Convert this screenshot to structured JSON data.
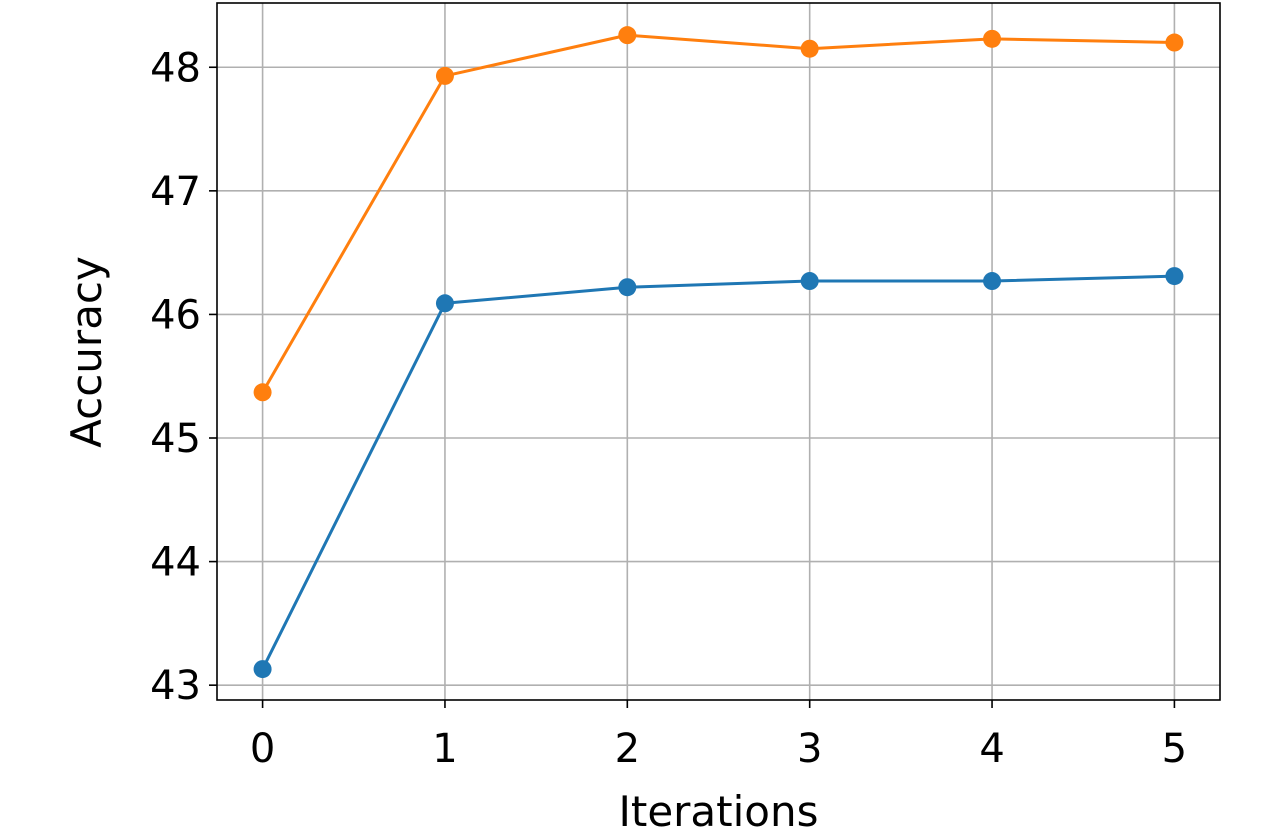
{
  "chart_data": {
    "type": "line",
    "title": "",
    "xlabel": "Iterations",
    "ylabel": "Accuracy",
    "x": [
      0,
      1,
      2,
      3,
      4,
      5
    ],
    "xticks": [
      "0",
      "1",
      "2",
      "3",
      "4",
      "5"
    ],
    "yticks": [
      "43",
      "44",
      "45",
      "46",
      "47",
      "48"
    ],
    "xlim": [
      -0.25,
      5.25
    ],
    "ylim": [
      42.88,
      48.52
    ],
    "grid": true,
    "legend": "none",
    "markers": "circle",
    "series": [
      {
        "color": "#1f77b4",
        "values": [
          43.13,
          46.09,
          46.22,
          46.27,
          46.27,
          46.31
        ]
      },
      {
        "color": "#ff7f0e",
        "values": [
          45.37,
          47.93,
          48.26,
          48.15,
          48.23,
          48.2
        ]
      }
    ]
  }
}
